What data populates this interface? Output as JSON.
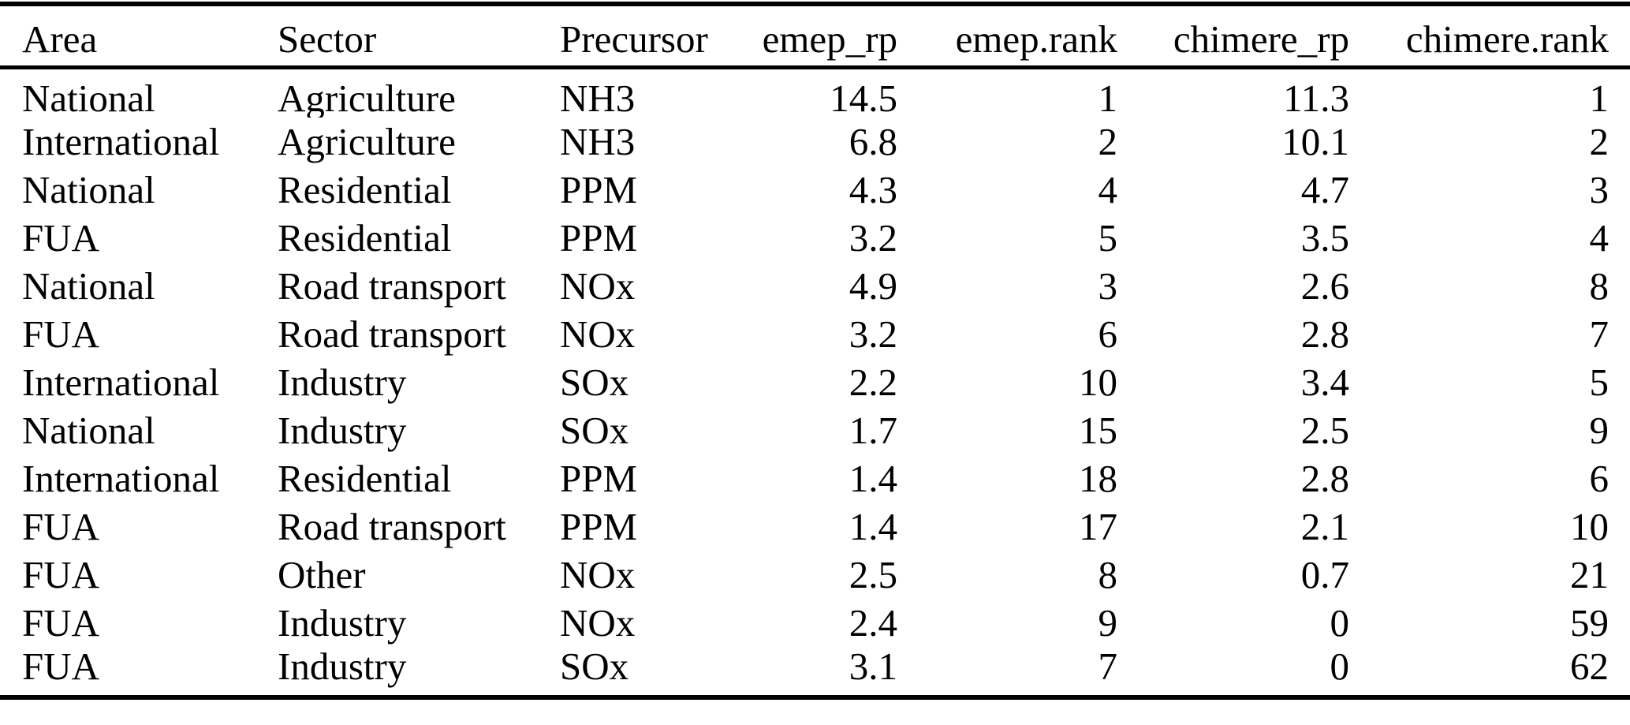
{
  "table": {
    "columns": [
      {
        "key": "area",
        "label": "Area",
        "align": "left"
      },
      {
        "key": "sector",
        "label": "Sector",
        "align": "left"
      },
      {
        "key": "precursor",
        "label": "Precursor",
        "align": "left"
      },
      {
        "key": "emep_rp",
        "label": "emep_rp",
        "align": "right"
      },
      {
        "key": "emep_rank",
        "label": "emep.rank",
        "align": "right"
      },
      {
        "key": "chimere_rp",
        "label": "chimere_rp",
        "align": "right"
      },
      {
        "key": "chimere_rank",
        "label": "chimere.rank",
        "align": "right"
      }
    ],
    "rows": [
      [
        "National",
        "Agriculture",
        "NH3",
        "14.5",
        "1",
        "11.3",
        "1"
      ],
      [
        "International",
        "Agriculture",
        "NH3",
        "6.8",
        "2",
        "10.1",
        "2"
      ],
      [
        "National",
        "Residential",
        "PPM",
        "4.3",
        "4",
        "4.7",
        "3"
      ],
      [
        "FUA",
        "Residential",
        "PPM",
        "3.2",
        "5",
        "3.5",
        "4"
      ],
      [
        "National",
        "Road transport",
        "NOx",
        "4.9",
        "3",
        "2.6",
        "8"
      ],
      [
        "FUA",
        "Road transport",
        "NOx",
        "3.2",
        "6",
        "2.8",
        "7"
      ],
      [
        "International",
        "Industry",
        "SOx",
        "2.2",
        "10",
        "3.4",
        "5"
      ],
      [
        "National",
        "Industry",
        "SOx",
        "1.7",
        "15",
        "2.5",
        "9"
      ],
      [
        "International",
        "Residential",
        "PPM",
        "1.4",
        "18",
        "2.8",
        "6"
      ],
      [
        "FUA",
        "Road transport",
        "PPM",
        "1.4",
        "17",
        "2.1",
        "10"
      ],
      [
        "FUA",
        "Other",
        "NOx",
        "2.5",
        "8",
        "0.7",
        "21"
      ],
      [
        "FUA",
        "Industry",
        "NOx",
        "2.4",
        "9",
        "0",
        "59"
      ],
      [
        "FUA",
        "Industry",
        "SOx",
        "3.1",
        "7",
        "0",
        "62"
      ]
    ]
  },
  "colors": {
    "text": "#000000",
    "background": "#ffffff",
    "rule": "#000000"
  }
}
